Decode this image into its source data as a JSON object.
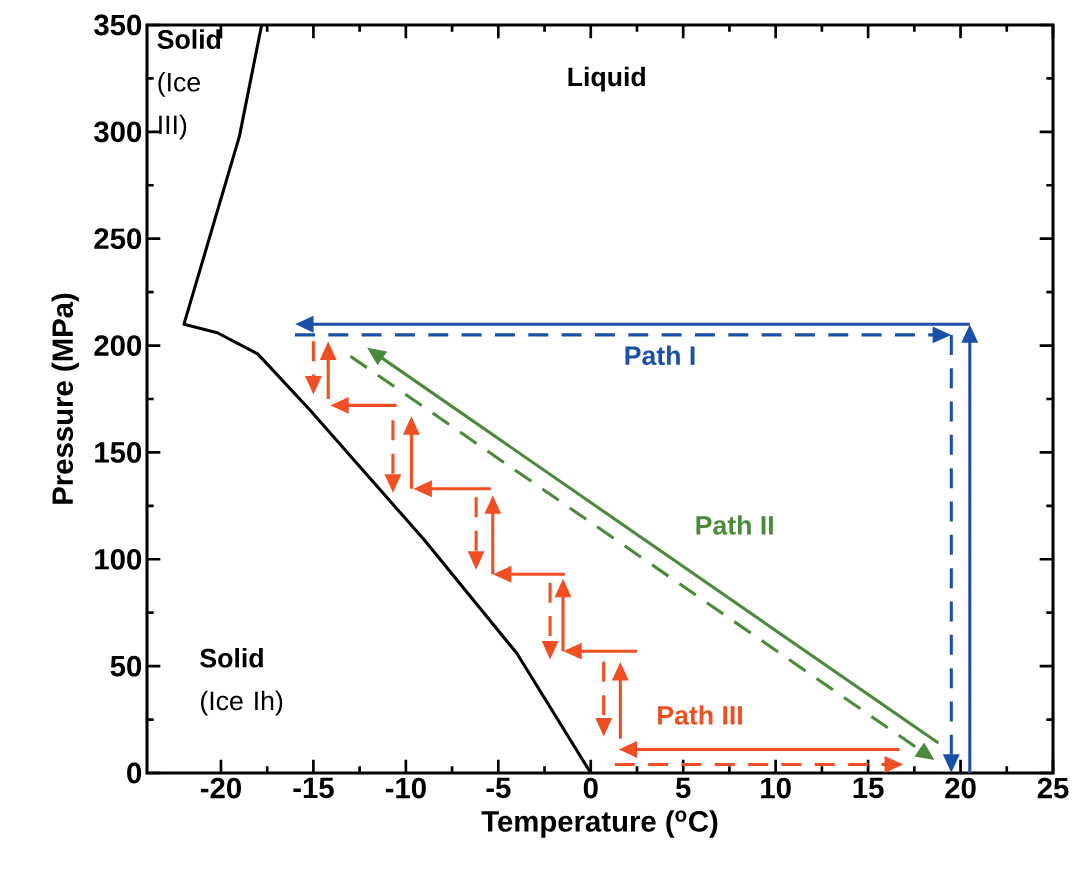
{
  "chart_data": {
    "type": "line",
    "xlabel": "Temperature ($^{o}$C)",
    "ylabel": "Pressure (MPa)",
    "xlim": [
      -24,
      25
    ],
    "ylim": [
      0,
      350
    ],
    "xticks": [
      -20,
      -15,
      -10,
      -5,
      0,
      5,
      10,
      15,
      20,
      25
    ],
    "yticks": [
      0,
      50,
      100,
      150,
      200,
      250,
      300,
      350
    ],
    "series": [
      {
        "color": "#000000",
        "x": [
          -17.8,
          -19,
          -22,
          -20.2,
          -18,
          -15.2,
          -9,
          -4,
          0
        ],
        "values": [
          350,
          298,
          210,
          206,
          196,
          170,
          109,
          56,
          0
        ]
      }
    ],
    "annotations": [
      "**Liquid**",
      "**Solid** (Ice III)",
      "**Solid** (Ice Ih)",
      "**Path I**",
      "**Path II**",
      "**Path III**"
    ]
  }
}
